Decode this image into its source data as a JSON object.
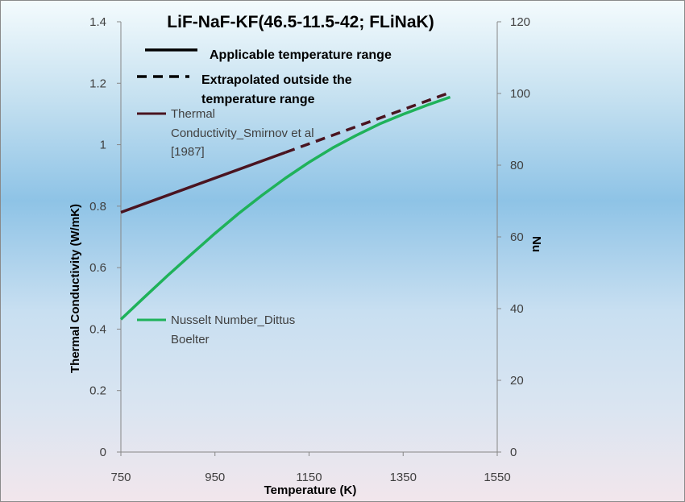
{
  "chart_data": {
    "type": "line",
    "title": "LiF-NaF-KF(46.5-11.5-42; FLiNaK)",
    "xlabel": "Temperature (K)",
    "ylabel": "Thermal Conductivity (W/mK)",
    "y2label": "Nu",
    "xlim": [
      750,
      1550
    ],
    "ylim": [
      0,
      1.4
    ],
    "y2lim": [
      0,
      120
    ],
    "x_ticks": [
      "750",
      "950",
      "1150",
      "1350",
      "1550"
    ],
    "y_ticks": [
      "0",
      "0.2",
      "0.4",
      "0.6",
      "0.8",
      "1",
      "1.2",
      "1.4"
    ],
    "y2_ticks": [
      "0",
      "20",
      "40",
      "60",
      "80",
      "100",
      "120"
    ],
    "grid": false,
    "style_legend": {
      "solid_label": "Applicable temperature range",
      "dashed_label_lines": [
        "Extrapolated outside the",
        "temperature range"
      ]
    },
    "series": [
      {
        "name_lines": [
          "Thermal",
          "Conductivity_Smirnov et al",
          "[1987]"
        ],
        "axis": "left",
        "color": "#4a1420",
        "solid": {
          "x": [
            750,
            1100
          ],
          "y": [
            0.78,
            0.975
          ]
        },
        "dashed": {
          "x": [
            1100,
            1450
          ],
          "y": [
            0.975,
            1.17
          ]
        }
      },
      {
        "name_lines": [
          "Nusselt Number_Dittus",
          "Boelter"
        ],
        "axis": "right",
        "color": "#1fb25a",
        "x": [
          750,
          800,
          850,
          900,
          950,
          1000,
          1050,
          1100,
          1150,
          1200,
          1250,
          1300,
          1350,
          1400,
          1450
        ],
        "y": [
          37,
          43.2,
          49.3,
          55.2,
          61,
          66.5,
          71.6,
          76.4,
          80.8,
          84.8,
          88.3,
          91.5,
          94.2,
          96.7,
          99
        ]
      }
    ]
  }
}
